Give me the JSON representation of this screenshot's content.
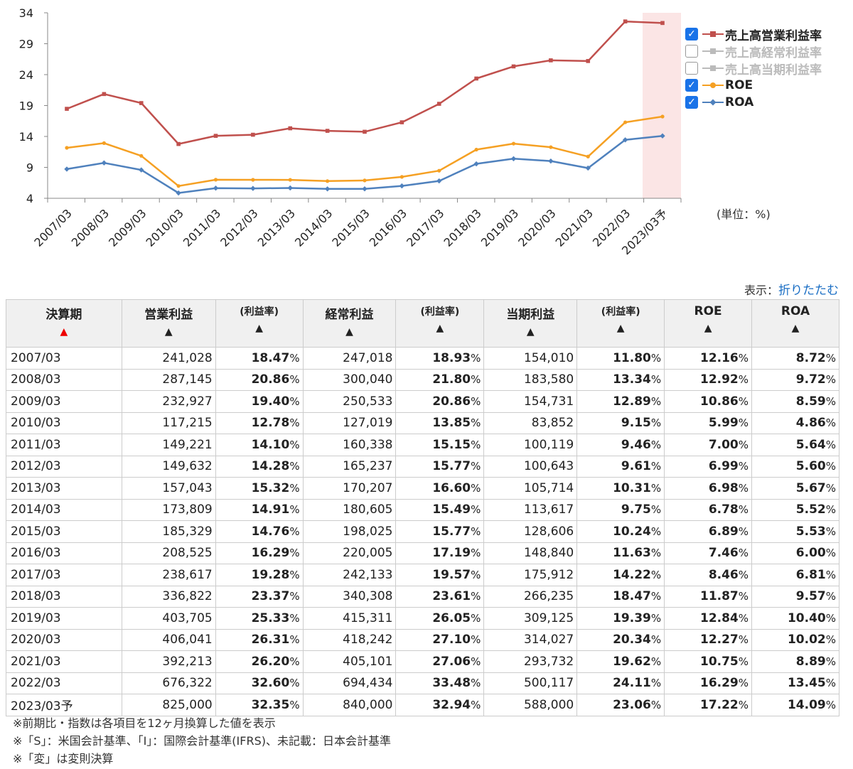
{
  "chart_data": {
    "type": "line",
    "categories": [
      "2007/03",
      "2008/03",
      "2009/03",
      "2010/03",
      "2011/03",
      "2012/03",
      "2013/03",
      "2014/03",
      "2015/03",
      "2016/03",
      "2017/03",
      "2018/03",
      "2019/03",
      "2020/03",
      "2021/03",
      "2022/03",
      "2023/03予"
    ],
    "ylim": [
      4,
      34
    ],
    "yticks": [
      4,
      9,
      14,
      19,
      24,
      29,
      34
    ],
    "unit_label": "(単位：%)",
    "series": [
      {
        "name": "売上高営業利益率",
        "color": "#c0504d",
        "enabled": true,
        "values": [
          18.47,
          20.86,
          19.4,
          12.78,
          14.1,
          14.28,
          15.32,
          14.91,
          14.76,
          16.29,
          19.28,
          23.37,
          25.33,
          26.31,
          26.2,
          32.6,
          32.35
        ]
      },
      {
        "name": "売上高経常利益率",
        "color": "#bbbbbb",
        "enabled": false,
        "values": [
          18.93,
          21.8,
          20.86,
          13.85,
          15.15,
          15.77,
          16.6,
          15.49,
          15.77,
          17.19,
          19.57,
          23.61,
          26.05,
          27.1,
          27.06,
          33.48,
          32.94
        ]
      },
      {
        "name": "売上高当期利益率",
        "color": "#bbbbbb",
        "enabled": false,
        "values": [
          11.8,
          13.34,
          12.89,
          9.15,
          9.46,
          9.61,
          10.31,
          9.75,
          10.24,
          11.63,
          14.22,
          18.47,
          19.39,
          20.34,
          19.62,
          24.11,
          23.06
        ]
      },
      {
        "name": "ROE",
        "color": "#f5a023",
        "enabled": true,
        "values": [
          12.16,
          12.92,
          10.86,
          5.99,
          7.0,
          6.99,
          6.98,
          6.78,
          6.89,
          7.46,
          8.46,
          11.87,
          12.84,
          12.27,
          10.75,
          16.29,
          17.22
        ]
      },
      {
        "name": "ROA",
        "color": "#4f81bd",
        "enabled": true,
        "values": [
          8.72,
          9.72,
          8.59,
          4.86,
          5.64,
          5.6,
          5.67,
          5.52,
          5.53,
          6.0,
          6.81,
          9.57,
          10.4,
          10.02,
          8.89,
          13.45,
          14.09
        ]
      }
    ]
  },
  "display": {
    "label": "表示：",
    "link": "折りたたむ"
  },
  "table": {
    "headers": {
      "period": "決算期",
      "op": "営業利益",
      "op_rate": "(利益率)",
      "ord": "経常利益",
      "ord_rate": "(利益率)",
      "net": "当期利益",
      "net_rate": "(利益率)",
      "roe": "ROE",
      "roa": "ROA",
      "sort_active": "▲",
      "sort": "▲"
    },
    "rows": [
      [
        "2007/03",
        "241,028",
        "18.47",
        "247,018",
        "18.93",
        "154,010",
        "11.80",
        "12.16",
        "8.72"
      ],
      [
        "2008/03",
        "287,145",
        "20.86",
        "300,040",
        "21.80",
        "183,580",
        "13.34",
        "12.92",
        "9.72"
      ],
      [
        "2009/03",
        "232,927",
        "19.40",
        "250,533",
        "20.86",
        "154,731",
        "12.89",
        "10.86",
        "8.59"
      ],
      [
        "2010/03",
        "117,215",
        "12.78",
        "127,019",
        "13.85",
        "83,852",
        "9.15",
        "5.99",
        "4.86"
      ],
      [
        "2011/03",
        "149,221",
        "14.10",
        "160,338",
        "15.15",
        "100,119",
        "9.46",
        "7.00",
        "5.64"
      ],
      [
        "2012/03",
        "149,632",
        "14.28",
        "165,237",
        "15.77",
        "100,643",
        "9.61",
        "6.99",
        "5.60"
      ],
      [
        "2013/03",
        "157,043",
        "15.32",
        "170,207",
        "16.60",
        "105,714",
        "10.31",
        "6.98",
        "5.67"
      ],
      [
        "2014/03",
        "173,809",
        "14.91",
        "180,605",
        "15.49",
        "113,617",
        "9.75",
        "6.78",
        "5.52"
      ],
      [
        "2015/03",
        "185,329",
        "14.76",
        "198,025",
        "15.77",
        "128,606",
        "10.24",
        "6.89",
        "5.53"
      ],
      [
        "2016/03",
        "208,525",
        "16.29",
        "220,005",
        "17.19",
        "148,840",
        "11.63",
        "7.46",
        "6.00"
      ],
      [
        "2017/03",
        "238,617",
        "19.28",
        "242,133",
        "19.57",
        "175,912",
        "14.22",
        "8.46",
        "6.81"
      ],
      [
        "2018/03",
        "336,822",
        "23.37",
        "340,308",
        "23.61",
        "266,235",
        "18.47",
        "11.87",
        "9.57"
      ],
      [
        "2019/03",
        "403,705",
        "25.33",
        "415,311",
        "26.05",
        "309,125",
        "19.39",
        "12.84",
        "10.40"
      ],
      [
        "2020/03",
        "406,041",
        "26.31",
        "418,242",
        "27.10",
        "314,027",
        "20.34",
        "12.27",
        "10.02"
      ],
      [
        "2021/03",
        "392,213",
        "26.20",
        "405,101",
        "27.06",
        "293,732",
        "19.62",
        "10.75",
        "8.89"
      ],
      [
        "2022/03",
        "676,322",
        "32.60",
        "694,434",
        "33.48",
        "500,117",
        "24.11",
        "16.29",
        "13.45"
      ],
      [
        "2023/03予",
        "825,000",
        "32.35",
        "840,000",
        "32.94",
        "588,000",
        "23.06",
        "17.22",
        "14.09"
      ]
    ],
    "pct_sign": "%"
  },
  "notes": [
    "※前期比・指数は各項目を12ヶ月換算した値を表示",
    "※「S」：米国会計基準、「I」：国際会計基準(IFRS)、未記載：日本会計基準",
    "※「変」は変則決算"
  ]
}
